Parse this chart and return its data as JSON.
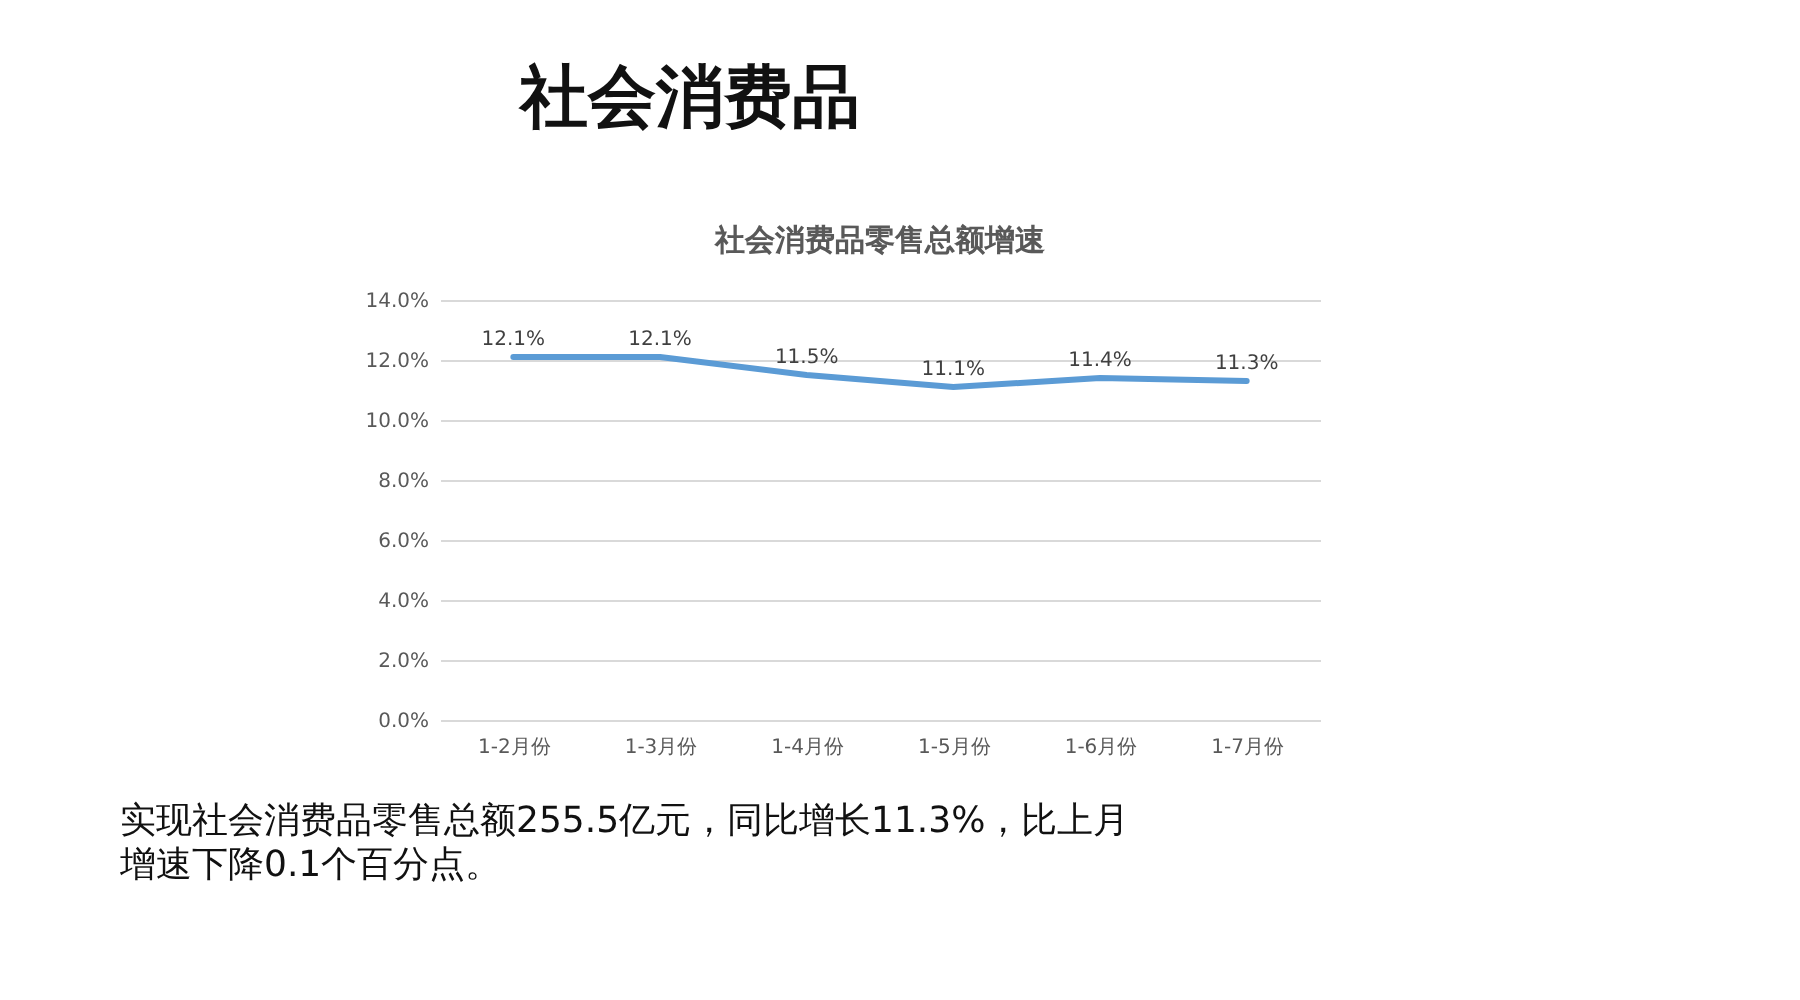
{
  "chart_data": {
    "type": "line",
    "title": "社会消费品零售总额增速",
    "categories": [
      "1-2月份",
      "1-3月份",
      "1-4月份",
      "1-5月份",
      "1-6月份",
      "1-7月份"
    ],
    "series": [
      {
        "color": "#5b9bd5",
        "values": [
          12.1,
          12.1,
          11.5,
          11.1,
          11.4,
          11.3
        ],
        "value_labels": [
          "12.1%",
          "12.1%",
          "11.5%",
          "11.1%",
          "11.4%",
          "11.3%"
        ]
      }
    ],
    "ylim": [
      0,
      14
    ],
    "yticks": [
      {
        "value": 0,
        "label": "0.0%"
      },
      {
        "value": 2,
        "label": "2.0%"
      },
      {
        "value": 4,
        "label": "4.0%"
      },
      {
        "value": 6,
        "label": "6.0%"
      },
      {
        "value": 8,
        "label": "8.0%"
      },
      {
        "value": 10,
        "label": "10.0%"
      },
      {
        "value": 12,
        "label": "12.0%"
      },
      {
        "value": 14,
        "label": "14.0%"
      }
    ],
    "grid": "y",
    "marker": "none",
    "line_style": "solid",
    "annotations": [
      "社会消费品",
      "实现社会消费品零售总额255.5亿元，同比增长11.3%，比上月增速下降0.1个百分点。"
    ]
  }
}
